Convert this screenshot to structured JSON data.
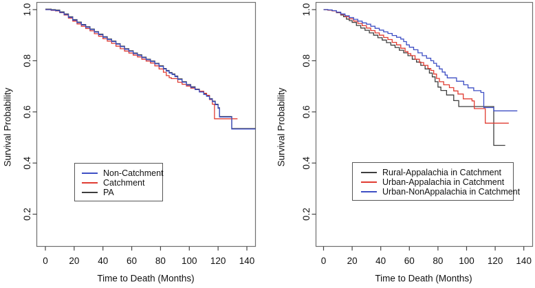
{
  "figure": {
    "background": "#ffffff",
    "box_color": "#6e6e6e",
    "tick_color": "#444444",
    "text_color": "#111111"
  },
  "chart_data": [
    {
      "type": "line",
      "subtype": "kaplan-meier-step",
      "title": "",
      "xlabel": "Time to Death (Months)",
      "ylabel": "Survival Probability",
      "xlim": [
        0,
        146
      ],
      "ylim": [
        0.08,
        1.03
      ],
      "xticks": [
        0,
        20,
        40,
        60,
        80,
        100,
        120,
        140
      ],
      "yticks": [
        0.2,
        0.4,
        0.6,
        0.8,
        1.0
      ],
      "grid": false,
      "legend_position": "inside-lower-left",
      "legend": [
        {
          "label": "Non-Catchment",
          "color": "#3d4ec4"
        },
        {
          "label": "Catchment",
          "color": "#e03b31"
        },
        {
          "label": "PA",
          "color": "#3d3d3d"
        }
      ],
      "series": [
        {
          "name": "PA",
          "color": "#3d3d3d",
          "points": [
            [
              0,
              1.002
            ],
            [
              4,
              1.0
            ],
            [
              7,
              0.998
            ],
            [
              10,
              0.991
            ],
            [
              13,
              0.983
            ],
            [
              16,
              0.972
            ],
            [
              19,
              0.961
            ],
            [
              22,
              0.951
            ],
            [
              25,
              0.942
            ],
            [
              28,
              0.933
            ],
            [
              31,
              0.924
            ],
            [
              34,
              0.914
            ],
            [
              37,
              0.904
            ],
            [
              40,
              0.894
            ],
            [
              43,
              0.885
            ],
            [
              46,
              0.877
            ],
            [
              49,
              0.867
            ],
            [
              52,
              0.857
            ],
            [
              55,
              0.847
            ],
            [
              58,
              0.839
            ],
            [
              61,
              0.83
            ],
            [
              64,
              0.823
            ],
            [
              67,
              0.814
            ],
            [
              70,
              0.806
            ],
            [
              73,
              0.799
            ],
            [
              76,
              0.79
            ],
            [
              79,
              0.78
            ],
            [
              82,
              0.77
            ],
            [
              84,
              0.762
            ],
            [
              86,
              0.754
            ],
            [
              88,
              0.748
            ],
            [
              90,
              0.74
            ],
            [
              92,
              0.729
            ],
            [
              95,
              0.718
            ],
            [
              98,
              0.707
            ],
            [
              101,
              0.698
            ],
            [
              104,
              0.689
            ],
            [
              107,
              0.68
            ],
            [
              110,
              0.67
            ],
            [
              112,
              0.663
            ],
            [
              114,
              0.652
            ],
            [
              116,
              0.642
            ],
            [
              118,
              0.63
            ],
            [
              120,
              0.616
            ],
            [
              121,
              0.582
            ],
            [
              129.5,
              0.535
            ],
            [
              146,
              0.535
            ]
          ]
        },
        {
          "name": "Catchment",
          "color": "#e03b31",
          "points": [
            [
              0,
              1.0
            ],
            [
              4,
              0.997
            ],
            [
              7,
              0.995
            ],
            [
              10,
              0.988
            ],
            [
              13,
              0.979
            ],
            [
              16,
              0.967
            ],
            [
              19,
              0.955
            ],
            [
              22,
              0.944
            ],
            [
              25,
              0.935
            ],
            [
              28,
              0.926
            ],
            [
              31,
              0.917
            ],
            [
              34,
              0.906
            ],
            [
              37,
              0.896
            ],
            [
              40,
              0.886
            ],
            [
              43,
              0.877
            ],
            [
              46,
              0.868
            ],
            [
              49,
              0.857
            ],
            [
              52,
              0.847
            ],
            [
              55,
              0.838
            ],
            [
              58,
              0.83
            ],
            [
              61,
              0.822
            ],
            [
              64,
              0.815
            ],
            [
              67,
              0.806
            ],
            [
              70,
              0.799
            ],
            [
              73,
              0.791
            ],
            [
              76,
              0.78
            ],
            [
              79,
              0.768
            ],
            [
              82,
              0.755
            ],
            [
              84,
              0.742
            ],
            [
              86,
              0.734
            ],
            [
              87.5,
              0.73
            ],
            [
              92,
              0.716
            ],
            [
              95,
              0.708
            ],
            [
              98,
              0.701
            ],
            [
              101,
              0.693
            ],
            [
              104,
              0.687
            ],
            [
              107,
              0.681
            ],
            [
              110,
              0.673
            ],
            [
              112,
              0.665
            ],
            [
              114,
              0.648
            ],
            [
              116,
              0.63
            ],
            [
              117.5,
              0.573
            ],
            [
              133.5,
              0.573
            ]
          ]
        },
        {
          "name": "Non-Catchment",
          "color": "#3d4ec4",
          "points": [
            [
              0,
              1.0
            ],
            [
              4,
              0.998
            ],
            [
              7,
              0.996
            ],
            [
              10,
              0.989
            ],
            [
              13,
              0.981
            ],
            [
              16,
              0.97
            ],
            [
              19,
              0.959
            ],
            [
              22,
              0.949
            ],
            [
              25,
              0.94
            ],
            [
              28,
              0.931
            ],
            [
              31,
              0.922
            ],
            [
              34,
              0.912
            ],
            [
              37,
              0.902
            ],
            [
              40,
              0.892
            ],
            [
              43,
              0.883
            ],
            [
              46,
              0.875
            ],
            [
              49,
              0.865
            ],
            [
              52,
              0.855
            ],
            [
              55,
              0.845
            ],
            [
              58,
              0.837
            ],
            [
              61,
              0.828
            ],
            [
              64,
              0.821
            ],
            [
              67,
              0.812
            ],
            [
              70,
              0.804
            ],
            [
              73,
              0.797
            ],
            [
              76,
              0.788
            ],
            [
              79,
              0.778
            ],
            [
              82,
              0.768
            ],
            [
              84,
              0.76
            ],
            [
              86,
              0.752
            ],
            [
              88,
              0.746
            ],
            [
              90,
              0.738
            ],
            [
              92,
              0.727
            ],
            [
              95,
              0.716
            ],
            [
              98,
              0.705
            ],
            [
              101,
              0.696
            ],
            [
              104,
              0.687
            ],
            [
              107,
              0.678
            ],
            [
              110,
              0.668
            ],
            [
              112,
              0.661
            ],
            [
              114,
              0.65
            ],
            [
              116,
              0.64
            ],
            [
              118,
              0.628
            ],
            [
              120,
              0.614
            ],
            [
              121,
              0.58
            ],
            [
              129.5,
              0.533
            ],
            [
              146,
              0.533
            ]
          ]
        }
      ]
    },
    {
      "type": "line",
      "subtype": "kaplan-meier-step",
      "title": "",
      "xlabel": "Time to Death (Months)",
      "ylabel": "Survival Probability",
      "xlim": [
        0,
        140
      ],
      "ylim": [
        0.08,
        1.03
      ],
      "xticks": [
        0,
        20,
        40,
        60,
        80,
        100,
        120,
        140
      ],
      "yticks": [
        0.2,
        0.4,
        0.6,
        0.8,
        1.0
      ],
      "grid": false,
      "legend_position": "inside-lower-center",
      "legend": [
        {
          "label": "Rural-Appalachia in Catchment",
          "color": "#3d3d3d"
        },
        {
          "label": "Urban-Appalachia in Catchment",
          "color": "#e03b31"
        },
        {
          "label": "Urban-NonAppalachia in Catchment",
          "color": "#3d4ec4"
        }
      ],
      "series": [
        {
          "name": "Rural-Appalachia in Catchment",
          "color": "#3d3d3d",
          "points": [
            [
              0,
              1.0
            ],
            [
              3,
              0.998
            ],
            [
              6,
              0.995
            ],
            [
              9,
              0.988
            ],
            [
              12,
              0.979
            ],
            [
              14,
              0.972
            ],
            [
              16,
              0.963
            ],
            [
              18,
              0.957
            ],
            [
              20,
              0.95
            ],
            [
              23,
              0.938
            ],
            [
              26,
              0.928
            ],
            [
              29,
              0.919
            ],
            [
              32,
              0.909
            ],
            [
              35,
              0.9
            ],
            [
              38,
              0.89
            ],
            [
              41,
              0.881
            ],
            [
              44,
              0.871
            ],
            [
              47,
              0.861
            ],
            [
              50,
              0.852
            ],
            [
              53,
              0.841
            ],
            [
              56,
              0.831
            ],
            [
              59,
              0.82
            ],
            [
              62,
              0.806
            ],
            [
              65,
              0.795
            ],
            [
              68,
              0.782
            ],
            [
              71,
              0.768
            ],
            [
              74,
              0.752
            ],
            [
              76,
              0.737
            ],
            [
              78,
              0.718
            ],
            [
              80,
              0.697
            ],
            [
              82,
              0.684
            ],
            [
              86,
              0.666
            ],
            [
              91,
              0.644
            ],
            [
              94.5,
              0.621
            ],
            [
              119,
              0.469
            ],
            [
              127,
              0.469
            ]
          ]
        },
        {
          "name": "Urban-Appalachia in Catchment",
          "color": "#e03b31",
          "points": [
            [
              0,
              1.0
            ],
            [
              3,
              0.998
            ],
            [
              6,
              0.995
            ],
            [
              9,
              0.989
            ],
            [
              12,
              0.981
            ],
            [
              15,
              0.972
            ],
            [
              18,
              0.964
            ],
            [
              21,
              0.955
            ],
            [
              24,
              0.946
            ],
            [
              27,
              0.937
            ],
            [
              30,
              0.928
            ],
            [
              33,
              0.918
            ],
            [
              36,
              0.909
            ],
            [
              39,
              0.9
            ],
            [
              42,
              0.891
            ],
            [
              45,
              0.883
            ],
            [
              48,
              0.872
            ],
            [
              51,
              0.862
            ],
            [
              54,
              0.849
            ],
            [
              57,
              0.836
            ],
            [
              59,
              0.828
            ],
            [
              61,
              0.82
            ],
            [
              64,
              0.806
            ],
            [
              67,
              0.793
            ],
            [
              70,
              0.782
            ],
            [
              73,
              0.77
            ],
            [
              75,
              0.762
            ],
            [
              77,
              0.748
            ],
            [
              79,
              0.731
            ],
            [
              81,
              0.718
            ],
            [
              84,
              0.706
            ],
            [
              88,
              0.695
            ],
            [
              91,
              0.682
            ],
            [
              94,
              0.67
            ],
            [
              97.7,
              0.651
            ],
            [
              103.8,
              0.643
            ],
            [
              105.4,
              0.613
            ],
            [
              113.1,
              0.556
            ],
            [
              129.5,
              0.556
            ]
          ]
        },
        {
          "name": "Urban-NonAppalachia in Catchment",
          "color": "#3d4ec4",
          "points": [
            [
              0,
              1.0
            ],
            [
              3,
              0.999
            ],
            [
              6,
              0.996
            ],
            [
              9,
              0.99
            ],
            [
              12,
              0.983
            ],
            [
              15,
              0.976
            ],
            [
              18,
              0.969
            ],
            [
              21,
              0.962
            ],
            [
              24,
              0.955
            ],
            [
              27,
              0.948
            ],
            [
              30,
              0.943
            ],
            [
              33,
              0.935
            ],
            [
              36,
              0.927
            ],
            [
              39,
              0.92
            ],
            [
              42,
              0.913
            ],
            [
              45,
              0.907
            ],
            [
              48,
              0.899
            ],
            [
              51,
              0.892
            ],
            [
              54,
              0.885
            ],
            [
              56,
              0.875
            ],
            [
              58,
              0.862
            ],
            [
              60,
              0.853
            ],
            [
              63,
              0.843
            ],
            [
              66,
              0.831
            ],
            [
              69,
              0.82
            ],
            [
              72,
              0.81
            ],
            [
              75,
              0.8
            ],
            [
              77,
              0.79
            ],
            [
              79,
              0.779
            ],
            [
              81,
              0.768
            ],
            [
              83,
              0.756
            ],
            [
              85,
              0.744
            ],
            [
              86.5,
              0.733
            ],
            [
              93,
              0.72
            ],
            [
              98,
              0.706
            ],
            [
              101,
              0.694
            ],
            [
              105,
              0.683
            ],
            [
              110,
              0.676
            ],
            [
              112,
              0.617
            ],
            [
              119,
              0.604
            ],
            [
              135.5,
              0.604
            ]
          ]
        }
      ]
    }
  ]
}
